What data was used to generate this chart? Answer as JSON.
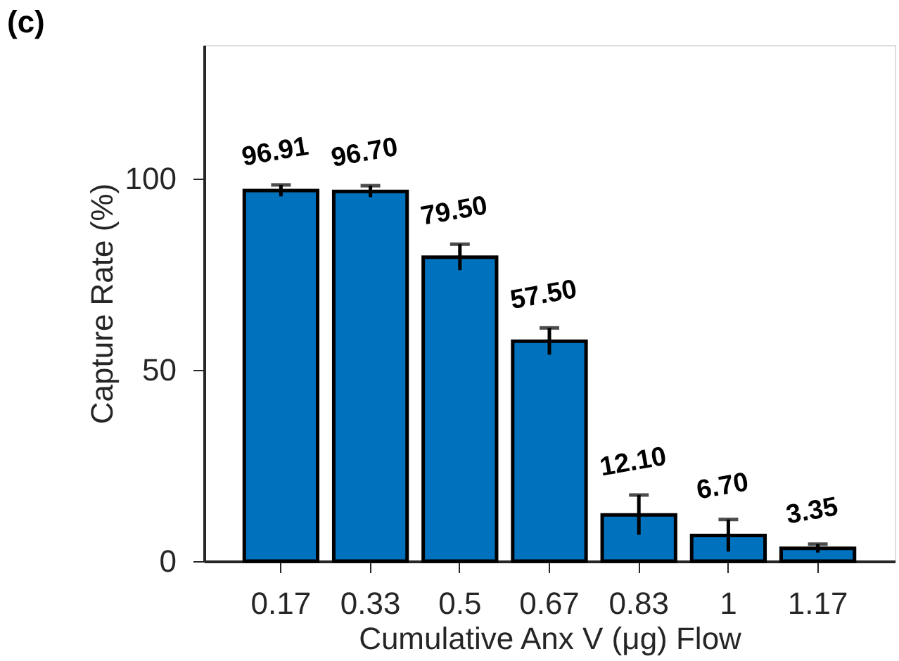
{
  "chart_data": {
    "type": "bar",
    "title": "(c)",
    "xlabel": "Cumulative Anx V (μg) Flow",
    "ylabel": "Capture Rate (%)",
    "categories": [
      "0.17",
      "0.33",
      "0.5",
      "0.67",
      "0.83",
      "1",
      "1.17"
    ],
    "values": [
      96.91,
      96.7,
      79.5,
      57.5,
      12.1,
      6.7,
      3.35
    ],
    "errors": [
      1.5,
      1.5,
      3.4,
      3.5,
      5.2,
      4.2,
      1.1
    ],
    "value_labels": [
      "96.91",
      "96.70",
      "79.50",
      "57.50",
      "12.10",
      "6.70",
      "3.35"
    ],
    "color": "#0072bd",
    "ylim": [
      0,
      135
    ],
    "yticks": [
      0,
      50,
      100
    ],
    "grid": false
  }
}
